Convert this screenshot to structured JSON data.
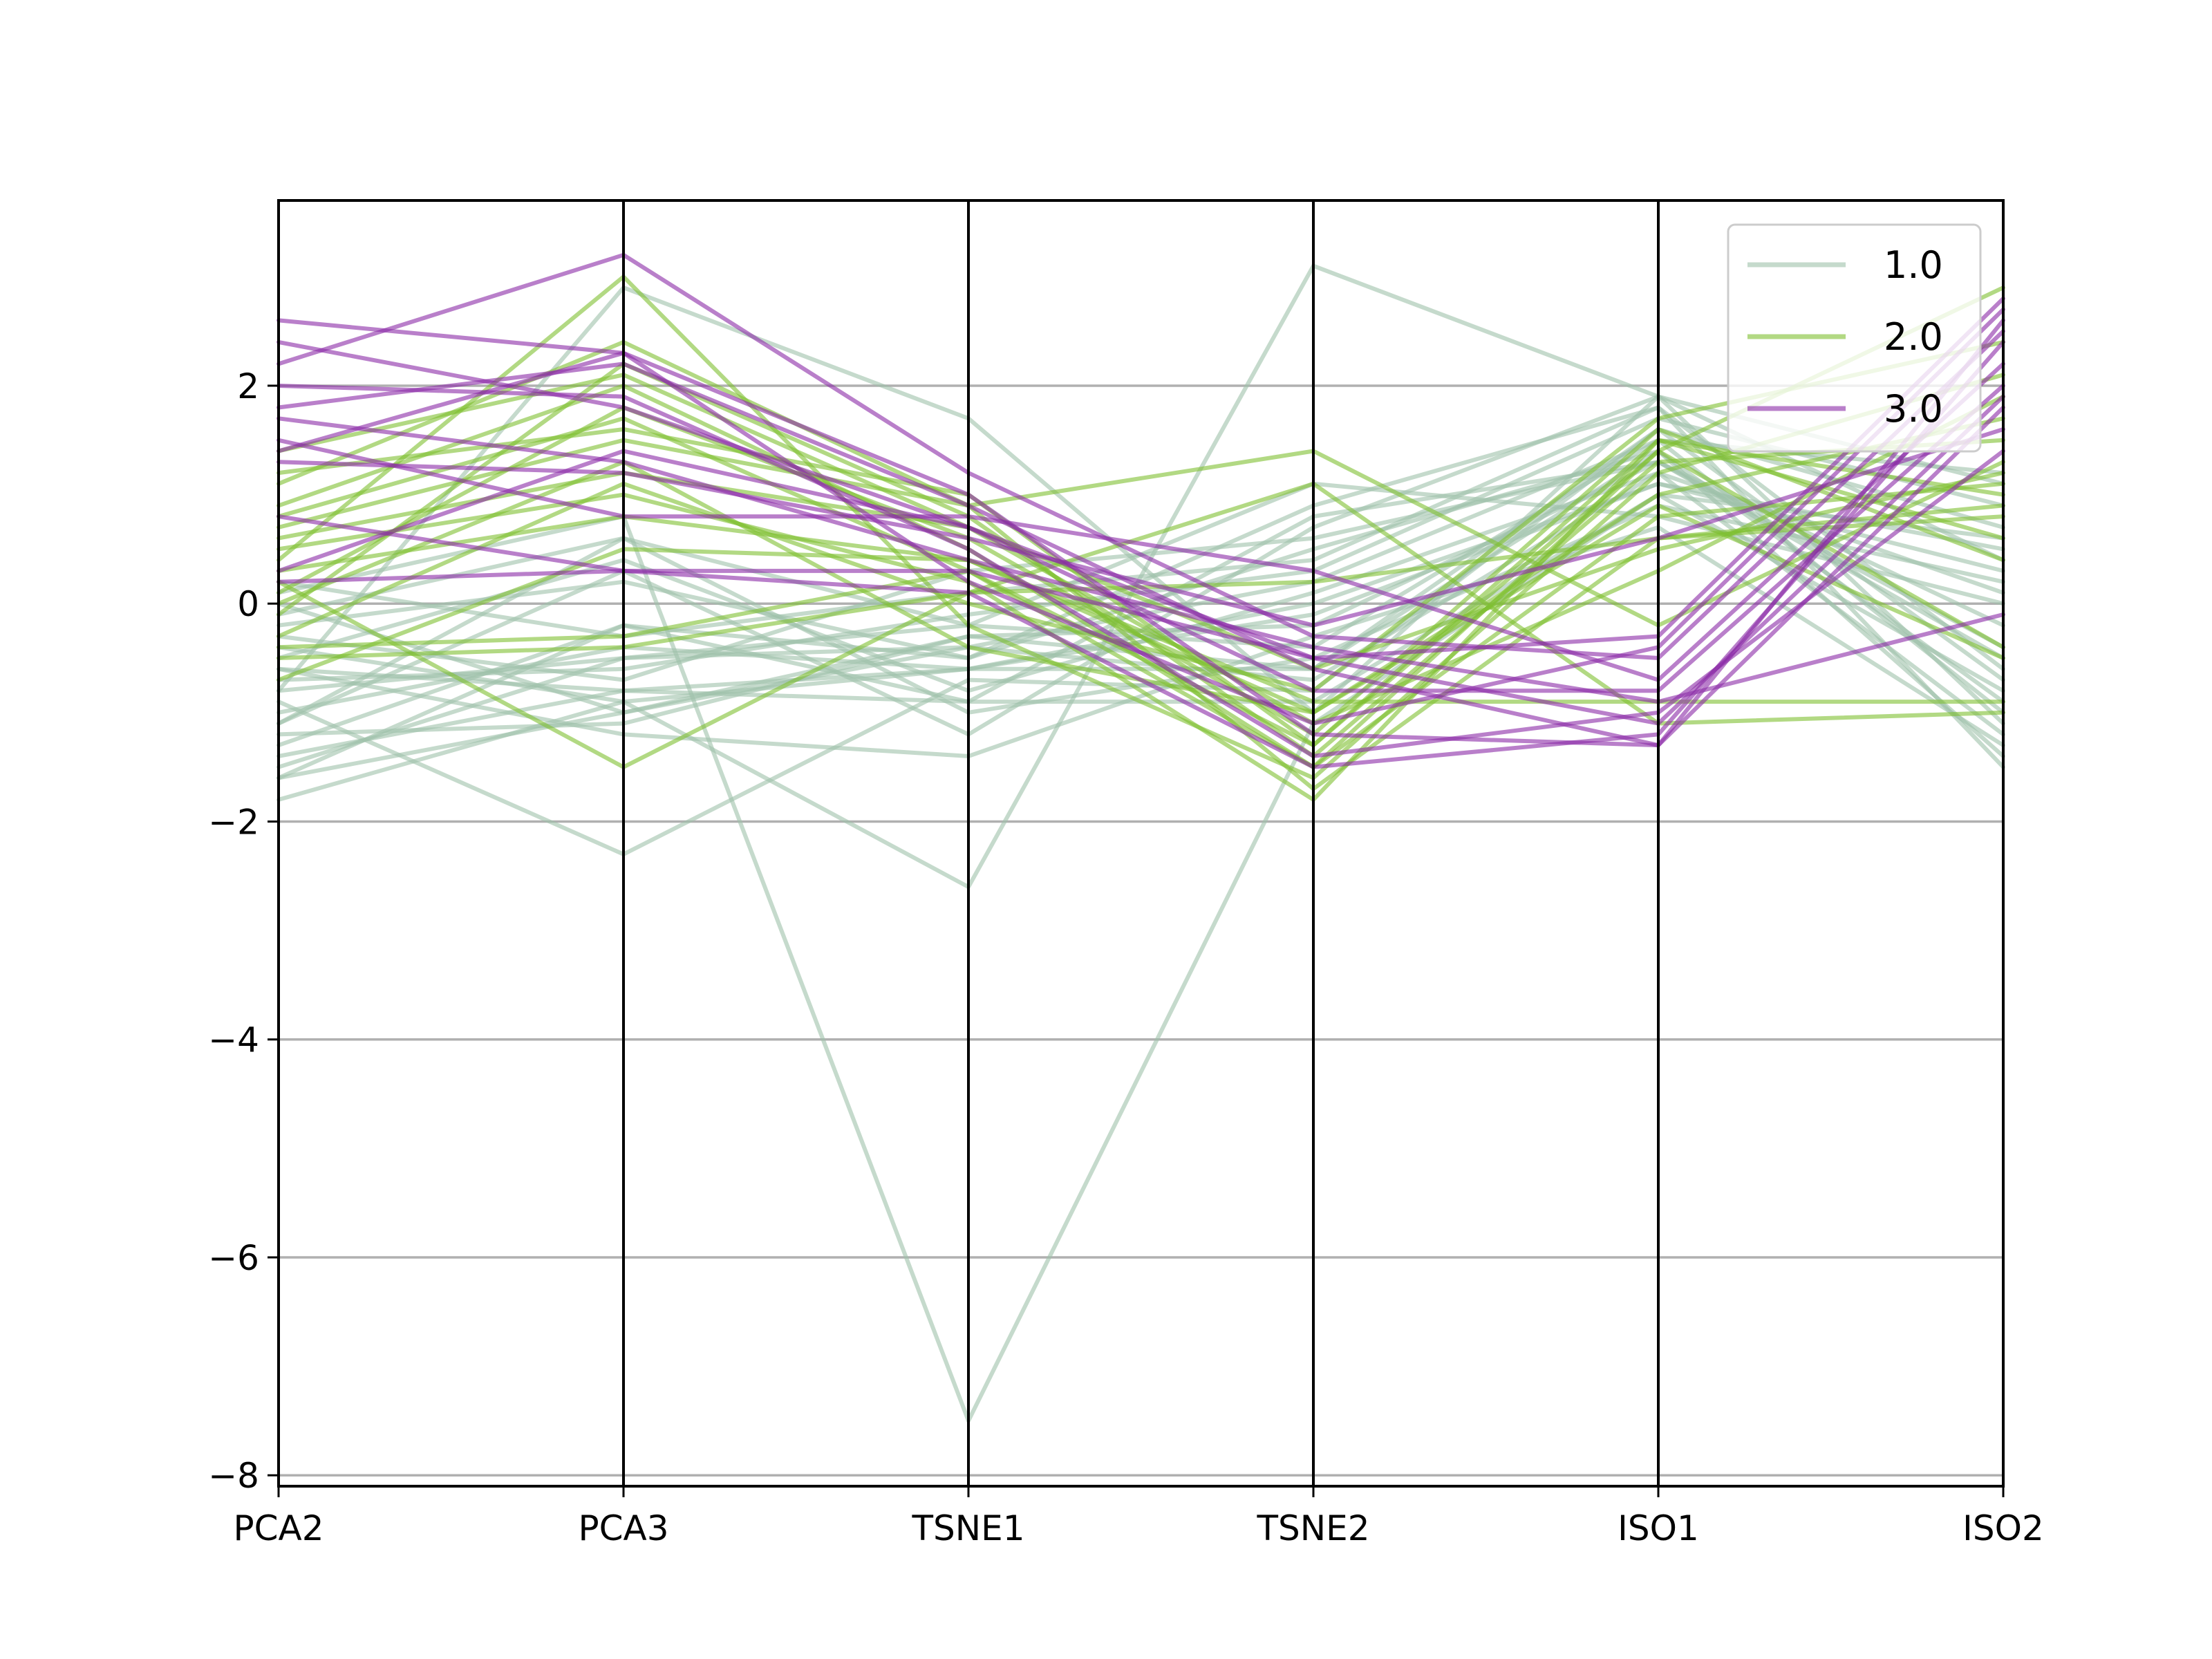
{
  "chart_data": {
    "type": "line",
    "subtype": "parallel_coordinates",
    "title": "",
    "xlabel": "",
    "ylabel": "",
    "categories": [
      "PCA2",
      "PCA3",
      "TSNE1",
      "TSNE2",
      "ISO1",
      "ISO2"
    ],
    "ylim": [
      -8.1,
      3.7
    ],
    "yticks": [
      -8,
      -6,
      -4,
      -2,
      0,
      2
    ],
    "ytick_labels": [
      "−8",
      "−6",
      "−4",
      "−2",
      "0",
      "2"
    ],
    "grid": true,
    "legend_position": "top-right",
    "line_alpha": 0.6,
    "series": [
      {
        "name": "1.0",
        "color": "#9ec2aa",
        "lines": [
          [
            -1.8,
            -0.9,
            -0.6,
            -0.6,
            1.4,
            -1.4
          ],
          [
            -1.6,
            -1.0,
            -0.4,
            -0.7,
            1.2,
            -1.2
          ],
          [
            -1.5,
            -0.5,
            -0.2,
            -0.4,
            1.5,
            -1.0
          ],
          [
            -1.4,
            -0.8,
            -0.9,
            -0.9,
            1.0,
            -0.8
          ],
          [
            -1.3,
            -0.2,
            -0.5,
            0.9,
            1.8,
            -0.6
          ],
          [
            -1.2,
            -1.1,
            -0.3,
            -0.2,
            1.3,
            -0.5
          ],
          [
            -1.1,
            0.6,
            -1.0,
            -0.5,
            0.9,
            0.2
          ],
          [
            -1.0,
            -0.4,
            -0.6,
            -0.1,
            1.1,
            0.5
          ],
          [
            -0.9,
            -2.3,
            -0.7,
            -0.8,
            1.6,
            0.7
          ],
          [
            -0.8,
            2.9,
            1.7,
            -1.0,
            1.9,
            1.1
          ],
          [
            -0.7,
            -0.6,
            -0.1,
            0.3,
            1.7,
            0.9
          ],
          [
            -0.6,
            -1.2,
            -1.4,
            -0.3,
            0.7,
            -1.3
          ],
          [
            -0.5,
            0.4,
            -0.8,
            0.1,
            1.2,
            0.1
          ],
          [
            -0.4,
            -0.9,
            -2.6,
            3.1,
            1.9,
            0.4
          ],
          [
            -0.3,
            -0.7,
            0.3,
            0.6,
            1.3,
            -0.2
          ],
          [
            -0.2,
            0.2,
            -0.5,
            0.5,
            1.4,
            -0.9
          ],
          [
            -0.1,
            0.6,
            -0.2,
            1.1,
            0.8,
            0.0
          ],
          [
            0.0,
            -1.0,
            -0.3,
            -0.6,
            1.6,
            -0.7
          ],
          [
            0.1,
            0.8,
            -7.5,
            -1.1,
            1.0,
            0.6
          ],
          [
            0.2,
            -0.3,
            0.1,
            0.4,
            1.8,
            -1.5
          ],
          [
            -0.8,
            -0.5,
            -0.4,
            0.2,
            1.5,
            1.2
          ],
          [
            -1.1,
            0.3,
            -1.2,
            0.7,
            1.9,
            -1.1
          ],
          [
            -0.6,
            -0.8,
            -0.6,
            0.0,
            1.1,
            0.3
          ],
          [
            -1.6,
            -0.2,
            -0.9,
            0.8,
            1.3,
            -0.4
          ]
        ]
      },
      {
        "name": "2.0",
        "color": "#7fc031",
        "lines": [
          [
            1.1,
            2.4,
            0.9,
            -1.7,
            0.6,
            0.9
          ],
          [
            0.9,
            2.0,
            0.5,
            -1.5,
            0.8,
            1.1
          ],
          [
            0.8,
            1.7,
            0.3,
            -1.3,
            1.4,
            2.9
          ],
          [
            0.7,
            1.5,
            0.9,
            1.4,
            -0.2,
            1.3
          ],
          [
            0.6,
            1.2,
            0.7,
            -1.1,
            0.3,
            1.9
          ],
          [
            0.5,
            1.0,
            0.2,
            -1.8,
            1.5,
            1.0
          ],
          [
            0.4,
            3.0,
            -0.2,
            -1.6,
            1.2,
            2.1
          ],
          [
            0.3,
            0.8,
            0.4,
            -0.9,
            -0.9,
            -0.9
          ],
          [
            0.2,
            -1.5,
            0.1,
            1.1,
            -1.1,
            -1.0
          ],
          [
            0.1,
            1.8,
            0.6,
            -1.2,
            1.6,
            0.4
          ],
          [
            0.0,
            1.3,
            -0.4,
            -1.0,
            0.9,
            -0.5
          ],
          [
            -0.1,
            2.2,
            0.8,
            -1.4,
            1.3,
            1.5
          ],
          [
            -0.3,
            1.1,
            0.0,
            -0.8,
            1.7,
            2.4
          ],
          [
            -0.5,
            -0.4,
            0.1,
            0.2,
            0.6,
            0.8
          ],
          [
            -0.7,
            0.5,
            0.4,
            -1.0,
            1.0,
            1.7
          ],
          [
            1.2,
            1.6,
            1.0,
            -1.3,
            1.5,
            0.6
          ],
          [
            1.4,
            2.1,
            0.7,
            -0.6,
            0.5,
            1.2
          ],
          [
            -0.4,
            -0.3,
            0.3,
            -1.5,
            1.4,
            -0.4
          ]
        ]
      },
      {
        "name": "3.0",
        "color": "#8a2aa6",
        "lines": [
          [
            2.6,
            2.3,
            1.0,
            -1.2,
            -1.3,
            1.8
          ],
          [
            2.4,
            1.8,
            0.7,
            -0.5,
            -0.3,
            2.8
          ],
          [
            2.2,
            3.2,
            1.2,
            -0.3,
            -0.5,
            2.5
          ],
          [
            2.0,
            1.9,
            0.5,
            -1.4,
            -1.0,
            1.4
          ],
          [
            1.8,
            2.2,
            0.9,
            -0.6,
            -1.3,
            2.6
          ],
          [
            1.7,
            1.3,
            0.4,
            -0.4,
            -0.9,
            -0.1
          ],
          [
            1.5,
            0.8,
            0.8,
            0.3,
            -0.7,
            2.2
          ],
          [
            1.4,
            2.3,
            0.2,
            -1.1,
            -0.4,
            2.7
          ],
          [
            1.3,
            1.2,
            0.6,
            -0.2,
            0.6,
            1.6
          ],
          [
            0.8,
            0.3,
            0.1,
            -1.5,
            -1.2,
            2.4
          ],
          [
            0.3,
            1.4,
            0.7,
            -0.8,
            -0.8,
            2.0
          ],
          [
            0.2,
            0.3,
            0.3,
            -0.5,
            -1.1,
            1.9
          ]
        ]
      }
    ]
  }
}
